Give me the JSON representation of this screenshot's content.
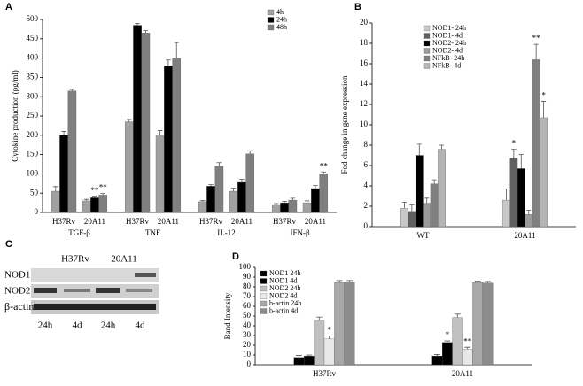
{
  "chart_data": [
    {
      "type": "bar",
      "panel_label": "A",
      "y_label": "Cytokine production (pg/ml)",
      "categories": [
        "H37Rv",
        "20A11",
        "H37Rv",
        "20A11",
        "H37Rv",
        "20A11",
        "H37Rv",
        "20A11"
      ],
      "groups": [
        "TGF-β",
        "TNF",
        "IL-12",
        "IFN-β"
      ],
      "series": [
        {
          "name": "4h",
          "color": "#a0a0a0",
          "values": [
            55,
            30,
            235,
            200,
            28,
            55,
            20,
            25
          ],
          "errors": [
            12,
            4,
            6,
            12,
            3,
            8,
            3,
            5
          ],
          "marks": [
            null,
            null,
            null,
            null,
            null,
            null,
            null,
            null
          ]
        },
        {
          "name": "24h",
          "color": "#000000",
          "values": [
            200,
            38,
            485,
            380,
            68,
            78,
            25,
            62
          ],
          "errors": [
            10,
            4,
            5,
            15,
            4,
            8,
            4,
            8
          ],
          "marks": [
            null,
            "**",
            null,
            null,
            null,
            null,
            null,
            null
          ]
        },
        {
          "name": "48h",
          "color": "#7f7f7f",
          "values": [
            315,
            45,
            465,
            400,
            120,
            152,
            32,
            100
          ],
          "errors": [
            4,
            4,
            6,
            40,
            9,
            8,
            5,
            5
          ],
          "marks": [
            null,
            "**",
            null,
            null,
            null,
            null,
            null,
            "**"
          ]
        }
      ],
      "ylim": [
        0,
        500
      ],
      "yticks": [
        0,
        50,
        100,
        150,
        200,
        250,
        300,
        350,
        400,
        450,
        500
      ]
    },
    {
      "type": "bar",
      "panel_label": "B",
      "y_label": "Fod change in gene expression",
      "categories": [
        "WT",
        "20A11"
      ],
      "series": [
        {
          "name": "NOD1- 24h",
          "color": "#c8c8c8",
          "values": [
            1.8,
            2.6
          ],
          "errors": [
            0.6,
            1.1
          ],
          "marks": [
            null,
            null
          ]
        },
        {
          "name": "NOD1- 4d",
          "color": "#606060",
          "values": [
            1.5,
            6.7
          ],
          "errors": [
            0.7,
            0.9
          ],
          "marks": [
            null,
            "*"
          ]
        },
        {
          "name": "NOD2- 24h",
          "color": "#000000",
          "values": [
            7.0,
            5.7
          ],
          "errors": [
            1.1,
            1.4
          ],
          "marks": [
            null,
            null
          ]
        },
        {
          "name": "NOD2- 4d",
          "color": "#9a9a9a",
          "values": [
            2.3,
            1.2
          ],
          "errors": [
            0.5,
            0.4
          ],
          "marks": [
            null,
            null
          ]
        },
        {
          "name": "NFkB- 24h",
          "color": "#808080",
          "values": [
            4.2,
            16.4
          ],
          "errors": [
            0.4,
            1.5
          ],
          "marks": [
            null,
            "**"
          ]
        },
        {
          "name": "NFkB- 4d",
          "color": "#b4b4b4",
          "values": [
            7.6,
            10.7
          ],
          "errors": [
            0.4,
            1.6
          ],
          "marks": [
            null,
            "*"
          ]
        }
      ],
      "ylim": [
        0,
        20
      ],
      "yticks": [
        0,
        2,
        4,
        6,
        8,
        10,
        12,
        14,
        16,
        18,
        20
      ]
    },
    {
      "type": "bar",
      "panel_label": "D",
      "y_label": "Band Intensity",
      "categories": [
        "H37Rv",
        "20A11"
      ],
      "series": [
        {
          "name": "NOD1 24h",
          "color": "#000000",
          "values": [
            7.5,
            9
          ],
          "errors": [
            2,
            1.5
          ],
          "marks": [
            null,
            null
          ]
        },
        {
          "name": "NOD1 4d",
          "color": "#000000",
          "values": [
            9,
            23
          ],
          "errors": [
            1,
            1.5
          ],
          "marks": [
            null,
            "*"
          ]
        },
        {
          "name": "NOD2 24h",
          "color": "#c0c0c0",
          "values": [
            45.5,
            48.5
          ],
          "errors": [
            3.5,
            3.5
          ],
          "marks": [
            null,
            null
          ]
        },
        {
          "name": "NOD2 4d",
          "color": "#e8e8e8",
          "values": [
            26.5,
            16
          ],
          "errors": [
            3,
            2
          ],
          "marks": [
            "*",
            "**"
          ]
        },
        {
          "name": "b-actin 24h",
          "color": "#a8a8a8",
          "values": [
            84.5,
            84.5
          ],
          "errors": [
            2,
            1.5
          ],
          "marks": [
            null,
            null
          ]
        },
        {
          "name": "b-actin 4d",
          "color": "#8c8c8c",
          "values": [
            85,
            84
          ],
          "errors": [
            1.5,
            1.5
          ],
          "marks": [
            null,
            null
          ]
        }
      ],
      "ylim": [
        0,
        100
      ],
      "yticks": [
        0,
        10,
        20,
        30,
        40,
        50,
        60,
        70,
        80,
        90,
        100
      ]
    }
  ],
  "blot": {
    "panel_label": "C",
    "strains": [
      "H37Rv",
      "20A11"
    ],
    "rows": [
      "NOD1",
      "NOD2",
      "β-actin"
    ],
    "lanes": [
      "24h",
      "4d",
      "24h",
      "4d"
    ]
  }
}
